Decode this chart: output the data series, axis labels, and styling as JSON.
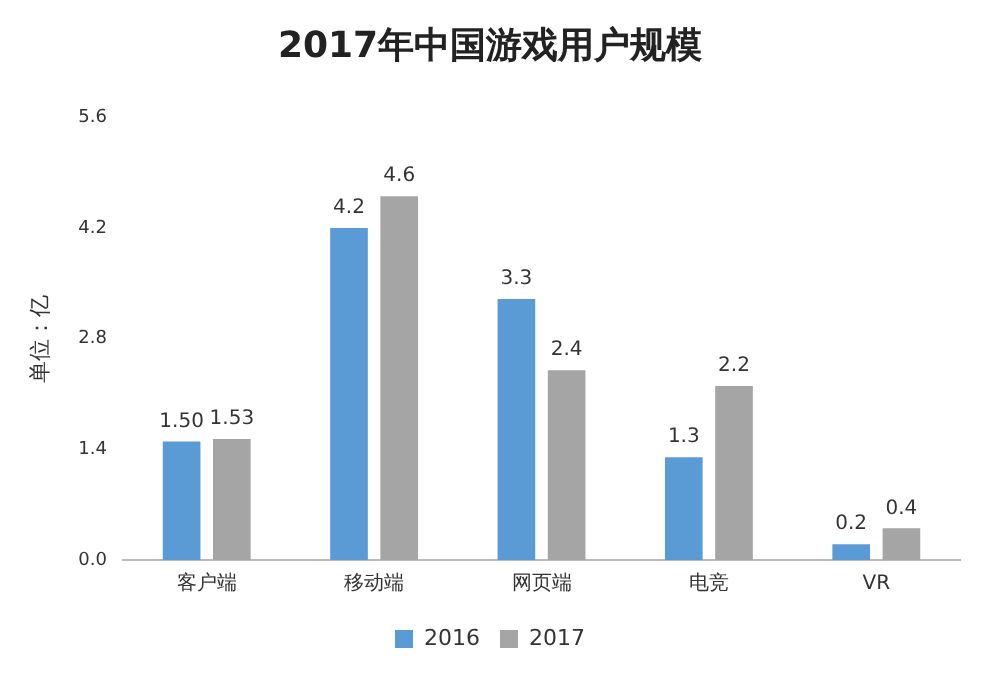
{
  "chart_data": {
    "type": "bar",
    "title": "2017年中国游戏用户规模",
    "ylabel": "单位：亿",
    "categories": [
      "客户端",
      "移动端",
      "网页端",
      "电竞",
      "VR"
    ],
    "series": [
      {
        "name": "2016",
        "color": "#5b9bd5",
        "values": [
          1.5,
          4.2,
          3.3,
          1.3,
          0.2
        ],
        "value_labels": [
          "1.50",
          "4.2",
          "3.3",
          "1.3",
          "0.2"
        ]
      },
      {
        "name": "2017",
        "color": "#a5a5a5",
        "values": [
          1.53,
          4.6,
          2.4,
          2.2,
          0.4
        ],
        "value_labels": [
          "1.53",
          "4.6",
          "2.4",
          "2.2",
          "0.4"
        ]
      }
    ],
    "ylim": [
      0,
      5.6
    ],
    "yticks": [
      {
        "value": 0,
        "label": "0.0"
      },
      1.4,
      2.8,
      4.2,
      5.6
    ],
    "grid": false,
    "legend": "bottom"
  }
}
